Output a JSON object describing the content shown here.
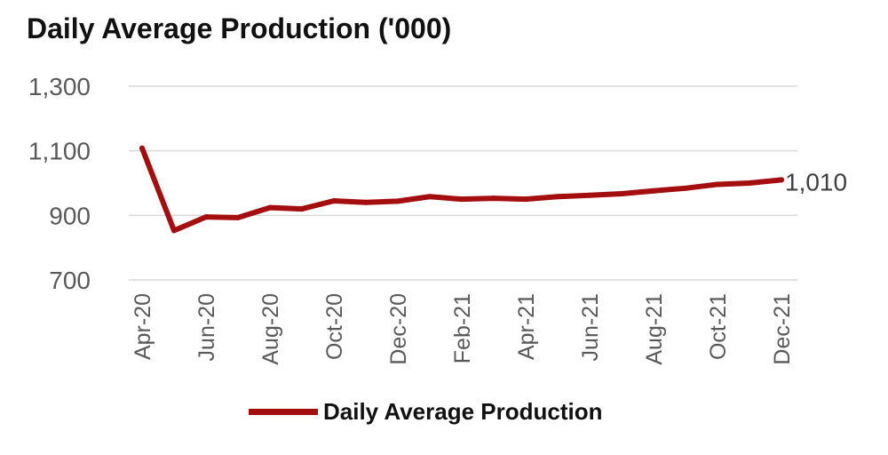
{
  "chart_data": {
    "type": "line",
    "title": "Daily Average Production ('000)",
    "xlabel": "",
    "ylabel": "",
    "x": [
      "Apr-20",
      "May-20",
      "Jun-20",
      "Jul-20",
      "Aug-20",
      "Sep-20",
      "Oct-20",
      "Nov-20",
      "Dec-20",
      "Jan-21",
      "Feb-21",
      "Mar-21",
      "Apr-21",
      "May-21",
      "Jun-21",
      "Jul-21",
      "Aug-21",
      "Sep-21",
      "Oct-21",
      "Nov-21",
      "Dec-21"
    ],
    "x_tick_labels": [
      "Apr-20",
      "Jun-20",
      "Aug-20",
      "Oct-20",
      "Dec-20",
      "Feb-21",
      "Apr-21",
      "Jun-21",
      "Aug-21",
      "Oct-21",
      "Dec-21"
    ],
    "y_ticks": [
      700,
      900,
      1100,
      1300
    ],
    "y_tick_labels": [
      "700",
      "900",
      "1,100",
      "1,300"
    ],
    "ylim": [
      700,
      1300
    ],
    "grid": true,
    "legend_position": "bottom",
    "series": [
      {
        "name": "Daily Average Production",
        "color": "#a50e0e",
        "values": [
          1108,
          853,
          895,
          893,
          924,
          920,
          945,
          940,
          944,
          958,
          950,
          953,
          950,
          958,
          962,
          967,
          976,
          984,
          996,
          1000,
          1010
        ]
      }
    ],
    "annotations": [
      {
        "text": "1,010",
        "x": "Dec-21",
        "y": 1010
      }
    ]
  }
}
